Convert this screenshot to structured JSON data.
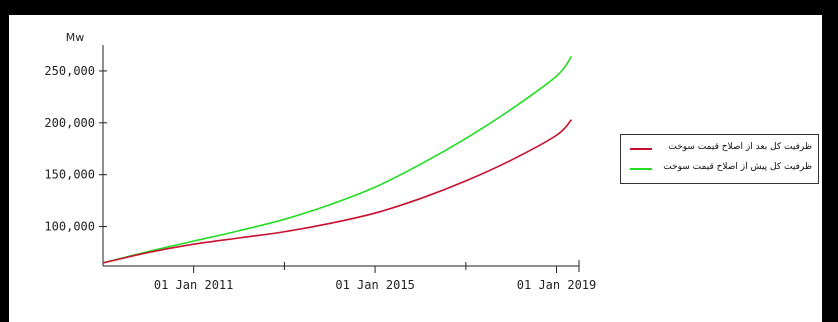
{
  "chart_data": {
    "type": "line",
    "ylabel": "Mw",
    "ylim": [
      62000,
      275000
    ],
    "y_ticks": [
      100000,
      150000,
      200000,
      250000
    ],
    "y_tick_labels": [
      "100,000",
      "150,000",
      "200,000",
      "250,000"
    ],
    "x_major_ticks": [
      "2011-01-01",
      "2015-01-01",
      "2019-01-01"
    ],
    "x_minor_ticks": [
      "2013-01-01",
      "2017-01-01"
    ],
    "x_tick_labels": [
      "01 Jan 2011",
      "01 Jan 2015",
      "01 Jan 2019"
    ],
    "xlim": [
      "2009-01-01",
      "2019-07-01"
    ],
    "x": [
      "2009-01-01",
      "2010-01-01",
      "2011-01-01",
      "2012-01-01",
      "2013-01-01",
      "2014-01-01",
      "2015-01-01",
      "2016-01-01",
      "2017-01-01",
      "2018-01-01",
      "2019-01-01",
      "2019-05-01"
    ],
    "series": [
      {
        "name": "ظرفیت کل بعد از اصلاح قیمت سوخت",
        "color": "#c8102e",
        "values": [
          65000,
          75000,
          83000,
          89000,
          95000,
          103000,
          113000,
          127000,
          144000,
          164000,
          188000,
          203000
        ]
      },
      {
        "name": "ظرفیت کل پیش از اصلاح قیمت سوخت",
        "color": "#22dd22",
        "values": [
          65000,
          76000,
          86000,
          96000,
          107000,
          121000,
          138000,
          160000,
          185000,
          213000,
          245000,
          264000
        ]
      }
    ],
    "legend_position": "right"
  }
}
